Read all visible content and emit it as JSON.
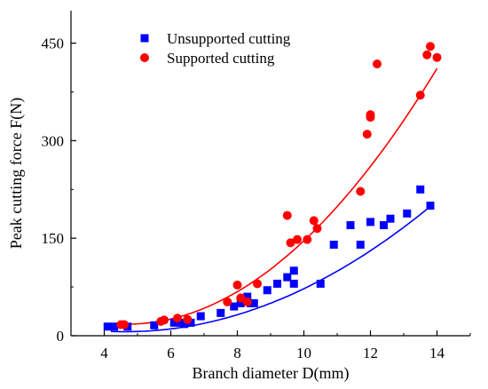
{
  "chart_data": {
    "type": "scatter",
    "xlabel": "Branch diameter D(mm)",
    "ylabel": "Peak cutting force F(N)",
    "xlim": [
      3,
      15
    ],
    "ylim": [
      0,
      500
    ],
    "xticks": [
      "4",
      "6",
      "8",
      "10",
      "12",
      "14"
    ],
    "yticks": [
      "0",
      "150",
      "300",
      "450"
    ],
    "legend_position": "top-left",
    "grid": false,
    "series": [
      {
        "name": "Unsupported cutting",
        "marker": "square",
        "color": "#0000ff",
        "x": [
          4.1,
          4.3,
          4.7,
          5.5,
          6.1,
          6.3,
          6.4,
          6.6,
          6.9,
          7.5,
          7.9,
          8.1,
          8.3,
          8.4,
          8.5,
          8.9,
          9.2,
          9.5,
          9.7,
          9.7,
          10.5,
          10.9,
          11.4,
          11.7,
          12.0,
          12.4,
          12.6,
          13.1,
          13.5,
          13.8
        ],
        "y": [
          14,
          14,
          14,
          16,
          20,
          20,
          18,
          20,
          30,
          35,
          45,
          50,
          60,
          50,
          50,
          70,
          80,
          90,
          80,
          100,
          80,
          140,
          170,
          140,
          175,
          170,
          180,
          188,
          225,
          200
        ]
      },
      {
        "name": "Supported cutting",
        "marker": "circle",
        "color": "#ff0000",
        "x": [
          4.5,
          4.6,
          5.7,
          5.8,
          6.2,
          6.5,
          7.7,
          8.0,
          8.1,
          8.3,
          8.6,
          9.5,
          9.6,
          9.8,
          10.1,
          10.3,
          10.4,
          11.7,
          11.9,
          12.0,
          12.0,
          12.2,
          13.5,
          13.7,
          13.8,
          14.0
        ],
        "y": [
          17,
          17,
          22,
          24,
          27,
          25,
          52,
          78,
          58,
          52,
          80,
          185,
          143,
          148,
          148,
          177,
          165,
          222,
          310,
          336,
          340,
          418,
          370,
          432,
          445,
          428
        ]
      }
    ],
    "fit_curves": [
      {
        "series": "Unsupported cutting",
        "color": "#0000ff",
        "x_range": [
          4.2,
          13.9
        ],
        "coefficients_quadratic": [
          55.12,
          -21.18,
          2.29
        ]
      },
      {
        "series": "Supported cutting",
        "color": "#ff0000",
        "x_range": [
          4.2,
          14.0
        ],
        "coefficients_quadratic": [
          116.4,
          -42.24,
          4.52
        ]
      }
    ]
  }
}
